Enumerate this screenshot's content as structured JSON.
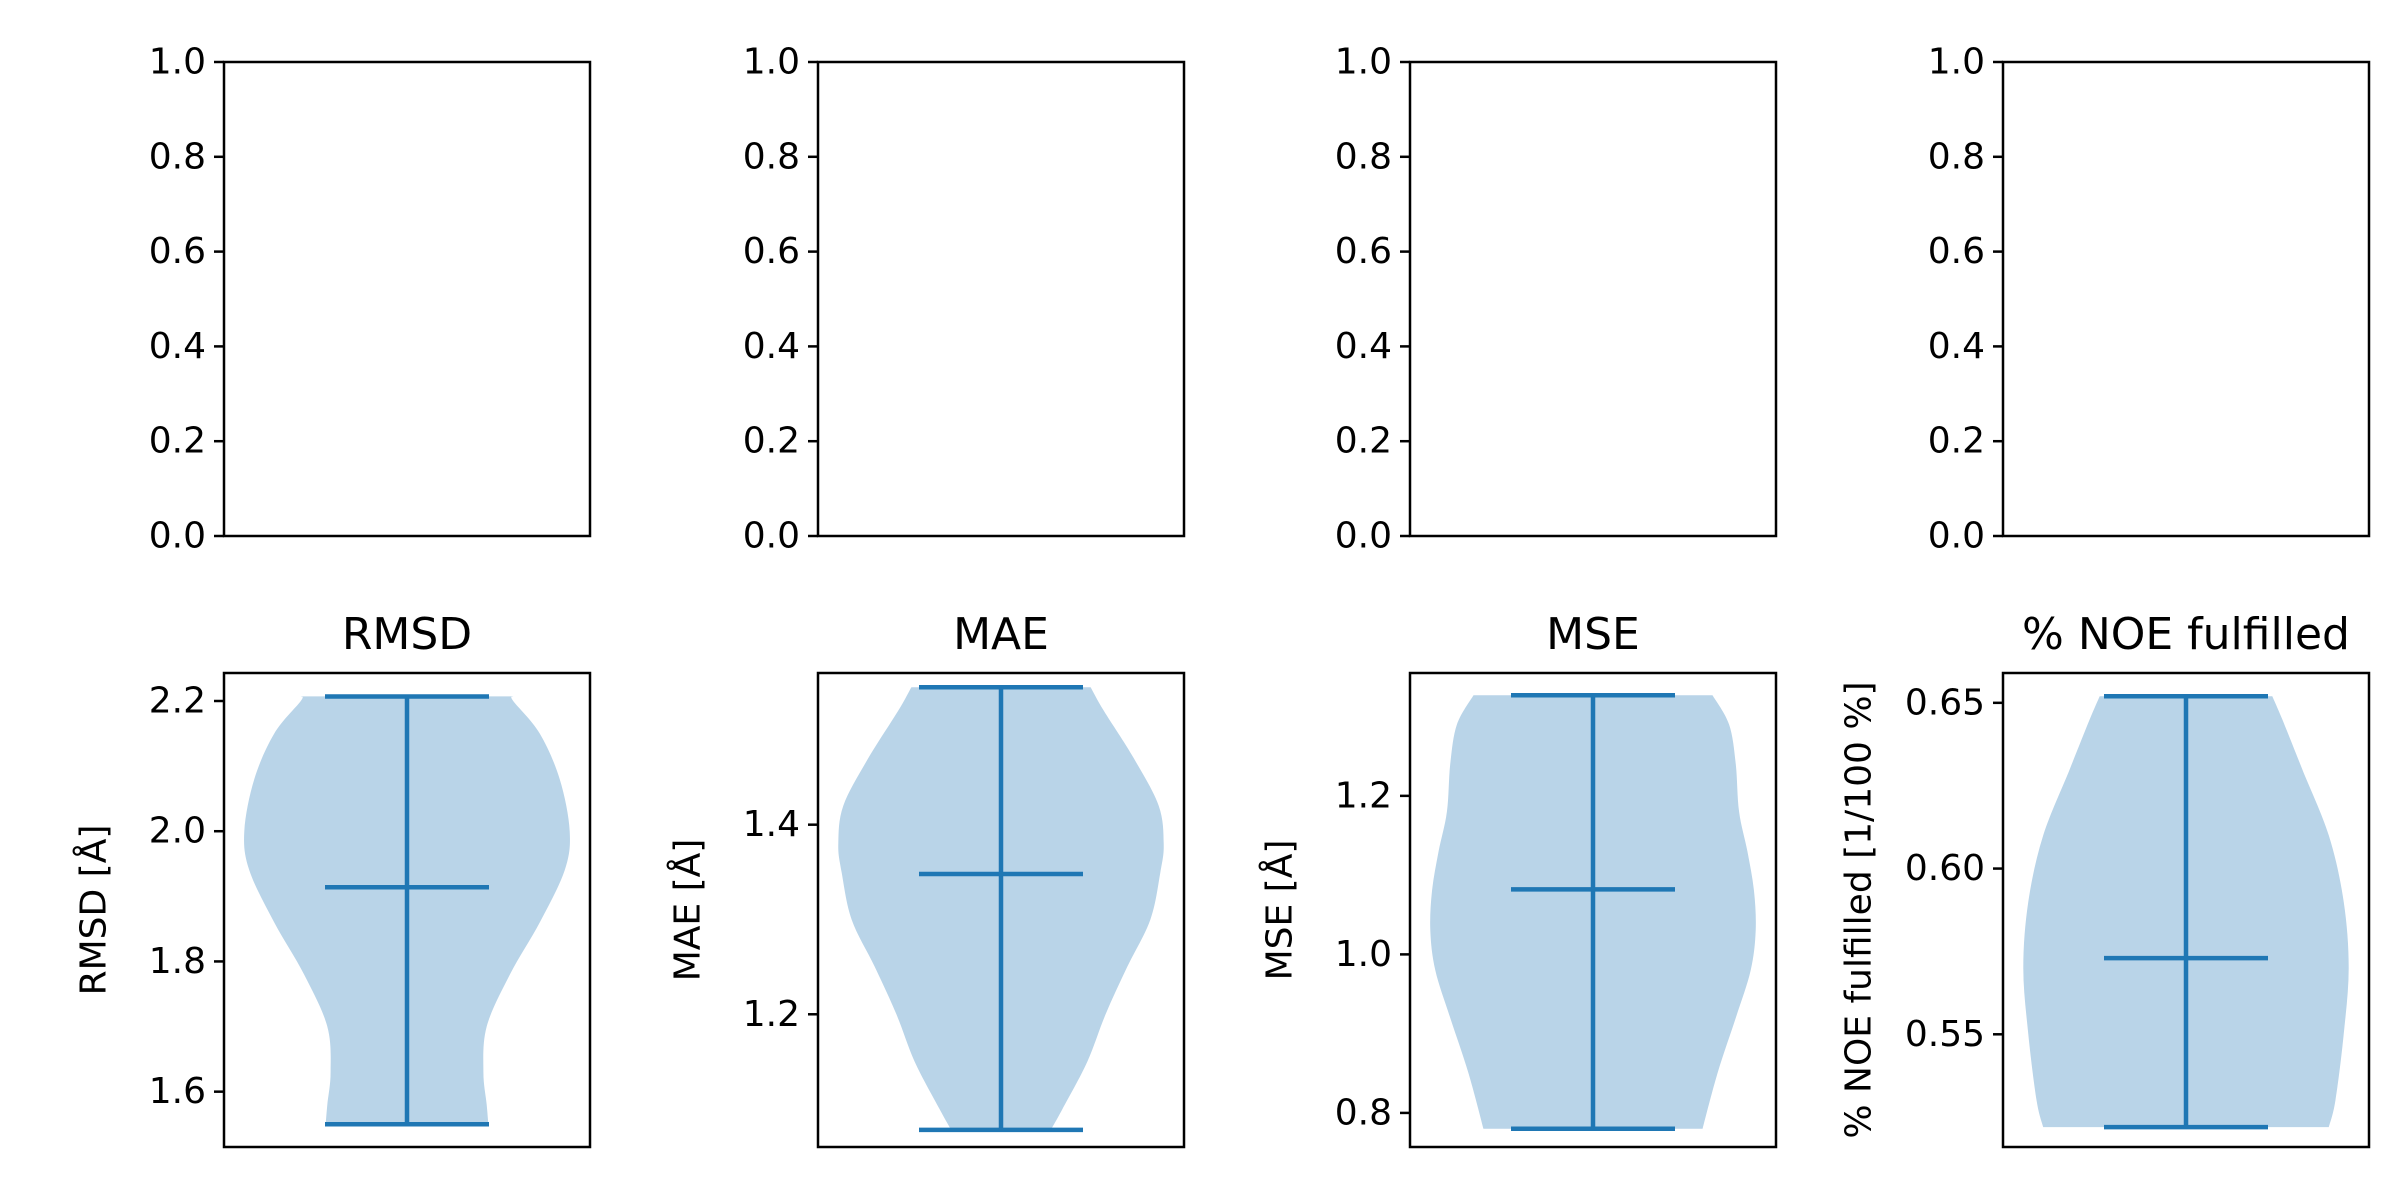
{
  "figure_colors": {
    "violin_fill": "#b9d4e8",
    "line": "#1f77b4"
  },
  "chart_data": [
    {
      "type": "empty",
      "row": "top",
      "ylim": [
        0.0,
        1.0
      ],
      "yticks": [
        0.0,
        0.2,
        0.4,
        0.6,
        0.8,
        1.0
      ],
      "tick_labels": [
        "0.0",
        "0.2",
        "0.4",
        "0.6",
        "0.8",
        "1.0"
      ]
    },
    {
      "type": "empty",
      "row": "top",
      "ylim": [
        0.0,
        1.0
      ],
      "yticks": [
        0.0,
        0.2,
        0.4,
        0.6,
        0.8,
        1.0
      ],
      "tick_labels": [
        "0.0",
        "0.2",
        "0.4",
        "0.6",
        "0.8",
        "1.0"
      ]
    },
    {
      "type": "empty",
      "row": "top",
      "ylim": [
        0.0,
        1.0
      ],
      "yticks": [
        0.0,
        0.2,
        0.4,
        0.6,
        0.8,
        1.0
      ],
      "tick_labels": [
        "0.0",
        "0.2",
        "0.4",
        "0.6",
        "0.8",
        "1.0"
      ]
    },
    {
      "type": "empty",
      "row": "top",
      "ylim": [
        0.0,
        1.0
      ],
      "yticks": [
        0.0,
        0.2,
        0.4,
        0.6,
        0.8,
        1.0
      ],
      "tick_labels": [
        "0.0",
        "0.2",
        "0.4",
        "0.6",
        "0.8",
        "1.0"
      ]
    },
    {
      "type": "violin",
      "row": "bottom",
      "title": "RMSD",
      "ylabel": "RMSD [Å]",
      "ylim": [
        1.515,
        2.243
      ],
      "yticks": [
        1.6,
        1.8,
        2.0,
        2.2
      ],
      "tick_labels": [
        "1.6",
        "1.8",
        "2.0",
        "2.2"
      ],
      "min": 1.55,
      "max": 2.207,
      "mean": 1.914,
      "density": [
        [
          1.55,
          0.49
        ],
        [
          1.58,
          0.48
        ],
        [
          1.63,
          0.46
        ],
        [
          1.7,
          0.48
        ],
        [
          1.78,
          0.62
        ],
        [
          1.86,
          0.8
        ],
        [
          1.94,
          0.95
        ],
        [
          2.0,
          0.98
        ],
        [
          2.08,
          0.92
        ],
        [
          2.15,
          0.8
        ],
        [
          2.2,
          0.64
        ],
        [
          2.207,
          0.64
        ]
      ]
    },
    {
      "type": "violin",
      "row": "bottom",
      "title": "MAE",
      "ylabel": "MAE [Å]",
      "ylim": [
        1.06,
        1.56
      ],
      "yticks": [
        1.2,
        1.4
      ],
      "tick_labels": [
        "1.2",
        "1.4"
      ],
      "min": 1.078,
      "max": 1.545,
      "mean": 1.348,
      "density": [
        [
          1.078,
          0.3
        ],
        [
          1.1,
          0.37
        ],
        [
          1.15,
          0.52
        ],
        [
          1.2,
          0.63
        ],
        [
          1.25,
          0.76
        ],
        [
          1.3,
          0.9
        ],
        [
          1.35,
          0.96
        ],
        [
          1.38,
          0.98
        ],
        [
          1.42,
          0.95
        ],
        [
          1.47,
          0.8
        ],
        [
          1.52,
          0.62
        ],
        [
          1.545,
          0.54
        ]
      ]
    },
    {
      "type": "violin",
      "row": "bottom",
      "title": "MSE",
      "ylabel": "MSE [Å]",
      "ylim": [
        0.757,
        1.355
      ],
      "yticks": [
        0.8,
        1.0,
        1.2
      ],
      "tick_labels": [
        "0.8",
        "1.0",
        "1.2"
      ],
      "min": 0.78,
      "max": 1.327,
      "mean": 1.082,
      "density": [
        [
          0.78,
          0.66
        ],
        [
          0.85,
          0.75
        ],
        [
          0.92,
          0.86
        ],
        [
          0.98,
          0.95
        ],
        [
          1.03,
          0.98
        ],
        [
          1.08,
          0.97
        ],
        [
          1.13,
          0.93
        ],
        [
          1.18,
          0.88
        ],
        [
          1.24,
          0.86
        ],
        [
          1.29,
          0.82
        ],
        [
          1.327,
          0.72
        ]
      ]
    },
    {
      "type": "violin",
      "row": "bottom",
      "title": "% NOE fulfilled",
      "ylabel": "% NOE fulfilled [1/100 %]",
      "ylim": [
        0.516,
        0.659
      ],
      "yticks": [
        0.55,
        0.6,
        0.65
      ],
      "tick_labels": [
        "0.55",
        "0.60",
        "0.65"
      ],
      "min": 0.522,
      "max": 0.652,
      "mean": 0.573,
      "density": [
        [
          0.522,
          0.86
        ],
        [
          0.53,
          0.9
        ],
        [
          0.55,
          0.95
        ],
        [
          0.57,
          0.98
        ],
        [
          0.59,
          0.95
        ],
        [
          0.61,
          0.86
        ],
        [
          0.63,
          0.7
        ],
        [
          0.645,
          0.58
        ],
        [
          0.652,
          0.52
        ]
      ]
    }
  ]
}
